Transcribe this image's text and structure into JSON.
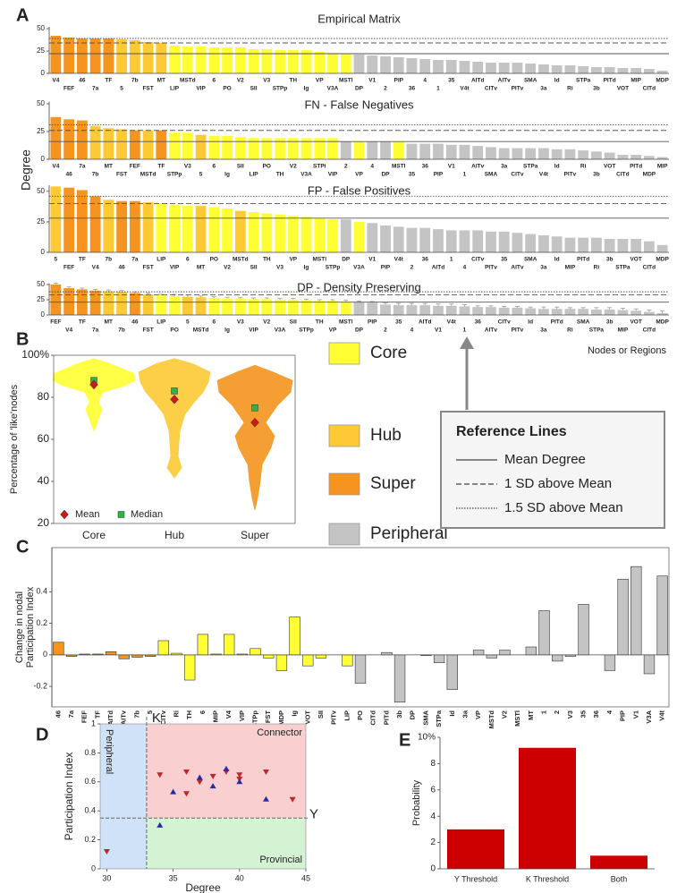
{
  "panel_labels": [
    "A",
    "B",
    "C",
    "D",
    "E"
  ],
  "shared_y_label": "Degree",
  "axis_note": "Nodes or Regions",
  "legend": [
    {
      "name": "Core",
      "color": "#ffff33"
    },
    {
      "name": "Hub",
      "color": "#fdc935"
    },
    {
      "name": "Super",
      "color": "#f5941f"
    },
    {
      "name": "Peripheral",
      "color": "#c4c4c4"
    }
  ],
  "reference_box": {
    "title": "Reference Lines",
    "items": [
      {
        "label": "Mean Degree",
        "style": "solid"
      },
      {
        "label": "1 SD above Mean",
        "style": "dashed"
      },
      {
        "label": "1.5 SD above Mean",
        "style": "dotted"
      }
    ]
  },
  "chart_data": [
    {
      "type": "bar",
      "title": "Empirical Matrix",
      "categories": [
        "V4",
        "FEF",
        "46",
        "7a",
        "TF",
        "5",
        "7b",
        "FST",
        "MT",
        "LIP",
        "MSTd",
        "VIP",
        "6",
        "PO",
        "V2",
        "SII",
        "V3",
        "STPp",
        "TH",
        "Ig",
        "VP",
        "V3A",
        "MSTl",
        "DP",
        "V1",
        "2",
        "PIP",
        "36",
        "4",
        "1",
        "35",
        "V4t",
        "AITd",
        "CITv",
        "AITv",
        "PITv",
        "SMA",
        "3a",
        "Id",
        "Ri",
        "STPa",
        "3b",
        "PITd",
        "VOT",
        "MIP",
        "CITd",
        "MDP"
      ],
      "values": [
        42,
        40,
        39,
        39,
        39,
        38,
        37,
        35,
        34,
        31,
        30,
        30,
        29,
        29,
        29,
        27,
        27,
        26,
        26,
        26,
        24,
        23,
        22,
        21,
        20,
        19,
        18,
        17,
        16,
        15,
        15,
        14,
        13,
        12,
        12,
        12,
        11,
        10,
        9,
        9,
        8,
        7,
        7,
        6,
        6,
        5,
        3
      ],
      "colors": [
        "#f5941f",
        "#f5941f",
        "#f5941f",
        "#f5941f",
        "#f5941f",
        "#fdc935",
        "#fdc935",
        "#fdc935",
        "#fdc935",
        "#ffff33",
        "#ffff33",
        "#ffff33",
        "#ffff33",
        "#ffff33",
        "#ffff33",
        "#ffff33",
        "#ffff33",
        "#ffff33",
        "#ffff33",
        "#ffff33",
        "#ffff33",
        "#ffff33",
        "#ffff33",
        "#c4c4c4",
        "#c4c4c4",
        "#c4c4c4",
        "#c4c4c4",
        "#c4c4c4",
        "#c4c4c4",
        "#c4c4c4",
        "#c4c4c4",
        "#c4c4c4",
        "#c4c4c4",
        "#c4c4c4",
        "#c4c4c4",
        "#c4c4c4",
        "#c4c4c4",
        "#c4c4c4",
        "#c4c4c4",
        "#c4c4c4",
        "#c4c4c4",
        "#c4c4c4",
        "#c4c4c4",
        "#c4c4c4",
        "#c4c4c4",
        "#c4c4c4",
        "#c4c4c4"
      ],
      "ylim": [
        0,
        52
      ],
      "yticks": [
        0,
        25,
        50
      ],
      "reference_lines": [
        22,
        34,
        39
      ]
    },
    {
      "type": "bar",
      "title": "FN - False Negatives",
      "categories": [
        "V4",
        "46",
        "7a",
        "7b",
        "MT",
        "FST",
        "FEF",
        "MSTd",
        "TF",
        "STPp",
        "V3",
        "5",
        "6",
        "Ig",
        "SII",
        "LIP",
        "PO",
        "TH",
        "V2",
        "V3A",
        "STPi",
        "VIP",
        "2",
        "VP",
        "4",
        "DP",
        "MSTl",
        "35",
        "36",
        "PIP",
        "V1",
        "1",
        "AITv",
        "SMA",
        "3a",
        "CITv",
        "STPa",
        "V4t",
        "Id",
        "PITv",
        "Ri",
        "3b",
        "VOT",
        "CITd",
        "PITd",
        "MDP",
        "MIP"
      ],
      "values": [
        38,
        36,
        35,
        30,
        28,
        27,
        26,
        26,
        26,
        24,
        24,
        22,
        21,
        21,
        20,
        19,
        19,
        19,
        19,
        19,
        19,
        19,
        16,
        16,
        16,
        16,
        16,
        14,
        14,
        14,
        13,
        13,
        12,
        11,
        10,
        10,
        10,
        10,
        9,
        9,
        8,
        7,
        6,
        4,
        4,
        3,
        2
      ],
      "colors": [
        "#f5941f",
        "#f5941f",
        "#f5941f",
        "#fdc935",
        "#fdc935",
        "#fdc935",
        "#f5941f",
        "#fdc935",
        "#f5941f",
        "#ffff33",
        "#ffff33",
        "#fdc935",
        "#ffff33",
        "#ffff33",
        "#ffff33",
        "#ffff33",
        "#ffff33",
        "#ffff33",
        "#ffff33",
        "#ffff33",
        "#ffff33",
        "#ffff33",
        "#c4c4c4",
        "#ffff33",
        "#c4c4c4",
        "#c4c4c4",
        "#ffff33",
        "#c4c4c4",
        "#c4c4c4",
        "#c4c4c4",
        "#c4c4c4",
        "#c4c4c4",
        "#c4c4c4",
        "#c4c4c4",
        "#c4c4c4",
        "#c4c4c4",
        "#c4c4c4",
        "#c4c4c4",
        "#c4c4c4",
        "#c4c4c4",
        "#c4c4c4",
        "#c4c4c4",
        "#c4c4c4",
        "#c4c4c4",
        "#c4c4c4",
        "#c4c4c4",
        "#c4c4c4"
      ],
      "ylim": [
        0,
        52
      ],
      "yticks": [
        0,
        25,
        50
      ],
      "reference_lines": [
        16,
        26,
        31
      ]
    },
    {
      "type": "bar",
      "title": "FP - False Positives",
      "categories": [
        "5",
        "FEF",
        "TF",
        "V4",
        "7b",
        "46",
        "7a",
        "FST",
        "LIP",
        "VIP",
        "6",
        "MT",
        "PO",
        "V2",
        "MSTd",
        "SII",
        "TH",
        "V3",
        "VP",
        "Ig",
        "MSTl",
        "STPp",
        "DP",
        "V3A",
        "V1",
        "PIP",
        "V4t",
        "2",
        "36",
        "AITd",
        "1",
        "4",
        "CITv",
        "PITv",
        "35",
        "AITv",
        "SMA",
        "3a",
        "Id",
        "MIP",
        "PITd",
        "Ri",
        "3b",
        "STPa",
        "VOT",
        "CITd",
        "MDP"
      ],
      "values": [
        54,
        53,
        51,
        46,
        43,
        42,
        42,
        41,
        40,
        39,
        38,
        38,
        37,
        36,
        34,
        33,
        32,
        31,
        30,
        29,
        28,
        27,
        27,
        25,
        24,
        22,
        21,
        20,
        20,
        19,
        18,
        18,
        18,
        17,
        17,
        16,
        15,
        14,
        13,
        12,
        12,
        12,
        11,
        11,
        11,
        9,
        6
      ],
      "colors": [
        "#fdc935",
        "#f5941f",
        "#f5941f",
        "#f5941f",
        "#fdc935",
        "#f5941f",
        "#f5941f",
        "#fdc935",
        "#ffff33",
        "#ffff33",
        "#ffff33",
        "#fdc935",
        "#ffff33",
        "#ffff33",
        "#fdc935",
        "#ffff33",
        "#ffff33",
        "#ffff33",
        "#ffff33",
        "#ffff33",
        "#ffff33",
        "#ffff33",
        "#c4c4c4",
        "#ffff33",
        "#c4c4c4",
        "#c4c4c4",
        "#c4c4c4",
        "#c4c4c4",
        "#c4c4c4",
        "#c4c4c4",
        "#c4c4c4",
        "#c4c4c4",
        "#c4c4c4",
        "#c4c4c4",
        "#c4c4c4",
        "#c4c4c4",
        "#c4c4c4",
        "#c4c4c4",
        "#c4c4c4",
        "#c4c4c4",
        "#c4c4c4",
        "#c4c4c4",
        "#c4c4c4",
        "#c4c4c4",
        "#c4c4c4",
        "#c4c4c4",
        "#c4c4c4"
      ],
      "ylim": [
        0,
        55
      ],
      "yticks": [
        0,
        25,
        50
      ],
      "reference_lines": [
        28,
        40,
        46
      ]
    },
    {
      "type": "bar",
      "title": "DP - Density Preserving",
      "categories": [
        "FEF",
        "V4",
        "TF",
        "7a",
        "MT",
        "7b",
        "46",
        "FST",
        "LIP",
        "PO",
        "5",
        "MSTd",
        "6",
        "Ig",
        "V3",
        "VIP",
        "V2",
        "V3A",
        "SII",
        "STPp",
        "TH",
        "VP",
        "MSTl",
        "DP",
        "PIP",
        "2",
        "35",
        "4",
        "AITd",
        "V1",
        "V4t",
        "1",
        "36",
        "AITv",
        "CITv",
        "PITv",
        "Id",
        "3a",
        "PITd",
        "Ri",
        "SMA",
        "STPa",
        "3b",
        "MIP",
        "VOT",
        "CITd",
        "MDP"
      ],
      "values": [
        50,
        44,
        42,
        40,
        39,
        38,
        36,
        34,
        32,
        31,
        30,
        29,
        28,
        27,
        27,
        26,
        26,
        25,
        25,
        24,
        23,
        23,
        22,
        21,
        20,
        17,
        16,
        16,
        16,
        15,
        15,
        14,
        13,
        13,
        12,
        12,
        11,
        10,
        10,
        10,
        10,
        9,
        9,
        8,
        7,
        5,
        3
      ],
      "errors": [
        2,
        2,
        2,
        2,
        2,
        2,
        2,
        2,
        2,
        3,
        3,
        2,
        2,
        2,
        2,
        2,
        2,
        2,
        2,
        2,
        2,
        2,
        2,
        2,
        2,
        3,
        3,
        3,
        3,
        3,
        3,
        3,
        2,
        2,
        2,
        2,
        2,
        3,
        3,
        2,
        2,
        3,
        3,
        3,
        3,
        3,
        4
      ],
      "colors": [
        "#f5941f",
        "#f5941f",
        "#f5941f",
        "#f5941f",
        "#fdc935",
        "#fdc935",
        "#f5941f",
        "#fdc935",
        "#ffff33",
        "#ffff33",
        "#fdc935",
        "#fdc935",
        "#ffff33",
        "#ffff33",
        "#ffff33",
        "#ffff33",
        "#ffff33",
        "#ffff33",
        "#ffff33",
        "#ffff33",
        "#ffff33",
        "#ffff33",
        "#ffff33",
        "#c4c4c4",
        "#c4c4c4",
        "#c4c4c4",
        "#c4c4c4",
        "#c4c4c4",
        "#c4c4c4",
        "#c4c4c4",
        "#c4c4c4",
        "#c4c4c4",
        "#c4c4c4",
        "#c4c4c4",
        "#c4c4c4",
        "#c4c4c4",
        "#c4c4c4",
        "#c4c4c4",
        "#c4c4c4",
        "#c4c4c4",
        "#c4c4c4",
        "#c4c4c4",
        "#c4c4c4",
        "#c4c4c4",
        "#c4c4c4",
        "#c4c4c4",
        "#c4c4c4"
      ],
      "ylim": [
        0,
        52
      ],
      "yticks": [
        0,
        25,
        50
      ],
      "reference_lines": [
        21,
        33,
        38
      ]
    },
    {
      "type": "violin",
      "categories": [
        "Core",
        "Hub",
        "Super"
      ],
      "colors": [
        "#ffff33",
        "#fdc935",
        "#f5941f"
      ],
      "mean": [
        86,
        79,
        68
      ],
      "median": [
        88,
        83,
        75
      ],
      "mean_label": "Mean",
      "median_label": "Median",
      "mean_color": "#cc1a1a",
      "median_color": "#2db34a",
      "y_label": "Percentage of 'like'nodes",
      "ylim": [
        20,
        100
      ],
      "yticks": [
        20,
        40,
        60,
        80,
        {
          "value": 100,
          "label": "100%"
        }
      ]
    },
    {
      "type": "bar",
      "categories": [
        "46",
        "7a",
        "FEF",
        "TF",
        "AITd",
        "AITv",
        "7b",
        "5",
        "CITv",
        "Ri",
        "TH",
        "6",
        "MIP",
        "V4",
        "VIP",
        "STPp",
        "FST",
        "MDP",
        "Ig",
        "VOT",
        "SII",
        "PITv",
        "LIP",
        "PO",
        "CITd",
        "PITd",
        "3b",
        "DP",
        "SMA",
        "STPa",
        "Id",
        "3a",
        "VP",
        "MSTd",
        "V2",
        "MSTl",
        "MT",
        "1",
        "2",
        "V3",
        "35",
        "36",
        "4",
        "PIP",
        "V1",
        "V3A",
        "V4t"
      ],
      "values": [
        0.08,
        -0.01,
        0.005,
        0.005,
        0.02,
        -0.025,
        -0.015,
        -0.01,
        0.09,
        0.01,
        -0.16,
        0.13,
        0.005,
        0.13,
        0.005,
        0.04,
        -0.02,
        -0.1,
        0.24,
        -0.07,
        -0.02,
        0,
        -0.07,
        -0.18,
        0,
        0.015,
        -0.3,
        0,
        -0.005,
        -0.05,
        -0.22,
        0,
        0.03,
        -0.02,
        0.03,
        0,
        0.05,
        0.28,
        -0.04,
        -0.01,
        0.32,
        0,
        -0.1,
        0.48,
        0.56,
        -0.12,
        0.5
      ],
      "colors": [
        "#f5941f",
        "#f5941f",
        "#f5941f",
        "#f5941f",
        "#f5941f",
        "#f5941f",
        "#f5941f",
        "#f5941f",
        "#ffff33",
        "#ffff33",
        "#ffff33",
        "#ffff33",
        "#ffff33",
        "#ffff33",
        "#ffff33",
        "#ffff33",
        "#ffff33",
        "#ffff33",
        "#ffff33",
        "#ffff33",
        "#ffff33",
        "#ffff33",
        "#ffff33",
        "#c4c4c4",
        "#c4c4c4",
        "#c4c4c4",
        "#c4c4c4",
        "#c4c4c4",
        "#c4c4c4",
        "#c4c4c4",
        "#c4c4c4",
        "#c4c4c4",
        "#c4c4c4",
        "#c4c4c4",
        "#c4c4c4",
        "#c4c4c4",
        "#c4c4c4",
        "#c4c4c4",
        "#c4c4c4",
        "#c4c4c4",
        "#c4c4c4",
        "#c4c4c4",
        "#c4c4c4",
        "#c4c4c4",
        "#c4c4c4",
        "#c4c4c4",
        "#c4c4c4"
      ],
      "y_label": [
        "Change in nodal",
        "Participation Index"
      ],
      "ylim": [
        -0.33,
        0.68
      ],
      "yticks": [
        -0.2,
        0,
        0.2,
        0.4
      ]
    },
    {
      "type": "scatter",
      "x_label": "Degree",
      "y_label": "Participation Index",
      "xlim": [
        29.5,
        45
      ],
      "xticks": [
        30,
        35,
        40,
        45
      ],
      "ylim": [
        0,
        1
      ],
      "yticks": [
        0,
        0.2,
        0.4,
        0.6,
        0.8,
        1
      ],
      "regions": [
        {
          "label": "Peripheral",
          "color": "#cfe2f7"
        },
        {
          "label": "Connector",
          "color": "#f9cfcf"
        },
        {
          "label": "Provincial",
          "color": "#d3f3d3"
        }
      ],
      "thresholds": [
        {
          "axis": "x",
          "value": 33,
          "label": "K"
        },
        {
          "axis": "y",
          "value": 0.35,
          "label": "Y"
        }
      ],
      "series": [
        {
          "color": "#c0262c",
          "marker": "triangle-down",
          "x": [
            30,
            34,
            36,
            36,
            37,
            38,
            39,
            40,
            40,
            42,
            44
          ],
          "values": [
            0.12,
            0.65,
            0.67,
            0.52,
            0.6,
            0.64,
            0.67,
            0.65,
            0.62,
            0.67,
            0.48
          ]
        },
        {
          "color": "#2a2aa8",
          "marker": "triangle-up",
          "x": [
            34,
            35,
            37,
            38,
            39,
            40,
            42
          ],
          "values": [
            0.3,
            0.53,
            0.63,
            0.57,
            0.69,
            0.6,
            0.48
          ]
        }
      ]
    },
    {
      "type": "bar",
      "y_label": "Probability",
      "categories": [
        "Y Threshold",
        "K Threshold",
        "Both"
      ],
      "values": [
        3,
        9.2,
        1
      ],
      "color": "#cc0000",
      "ylim": [
        0,
        10
      ],
      "yticks": [
        0,
        2,
        4,
        6,
        8,
        {
          "value": 10,
          "label": "10%"
        }
      ]
    }
  ]
}
